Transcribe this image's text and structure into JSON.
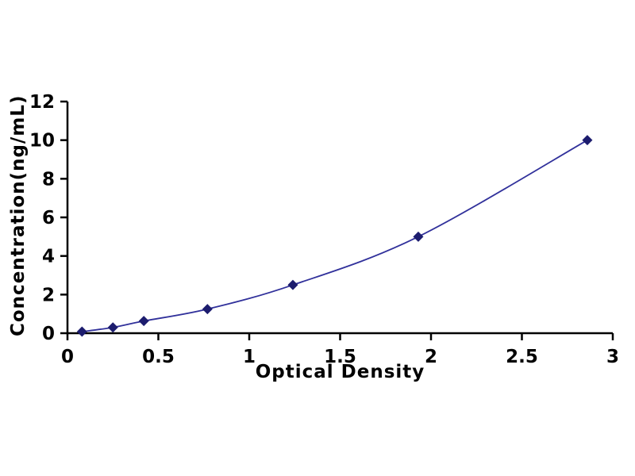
{
  "figure": {
    "background": "#ffffff"
  },
  "chart_data": {
    "type": "line",
    "title": "",
    "xlabel": "Optical Density",
    "ylabel": "Concentration(ng/mL)",
    "x": [
      0.08,
      0.25,
      0.42,
      0.77,
      1.24,
      1.93,
      2.86
    ],
    "y": [
      0.08,
      0.3,
      0.63,
      1.25,
      2.5,
      5.0,
      10.0
    ],
    "xlim": [
      0,
      3
    ],
    "ylim": [
      0,
      12
    ],
    "xticks": [
      0,
      0.5,
      1,
      1.5,
      2,
      2.5,
      3
    ],
    "xtick_labels": [
      "0",
      "0.5",
      "1",
      "1.5",
      "2",
      "2.5",
      "3"
    ],
    "yticks": [
      0,
      2,
      4,
      6,
      8,
      10,
      12
    ],
    "ytick_labels": [
      "0",
      "2",
      "4",
      "6",
      "8",
      "10",
      "12"
    ],
    "grid": false,
    "legend": "none",
    "marker": "diamond",
    "line_color": "#31319b",
    "marker_color": "#1c1c6e",
    "axis_color": "#000000"
  }
}
